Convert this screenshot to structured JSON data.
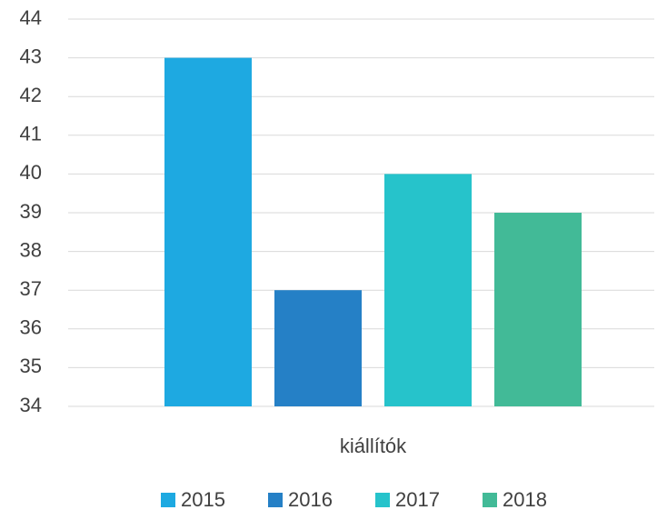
{
  "chart_data": {
    "type": "bar",
    "categories": [
      "kiállítók"
    ],
    "series": [
      {
        "name": "2015",
        "color": "#1ea9e1",
        "values": [
          43
        ]
      },
      {
        "name": "2016",
        "color": "#2580c6",
        "values": [
          37
        ]
      },
      {
        "name": "2017",
        "color": "#26c3cb",
        "values": [
          40
        ]
      },
      {
        "name": "2018",
        "color": "#42ba97",
        "values": [
          39
        ]
      }
    ],
    "ylim": [
      34,
      44
    ],
    "yticks": [
      34,
      35,
      36,
      37,
      38,
      39,
      40,
      41,
      42,
      43,
      44
    ],
    "grid": true,
    "legend": "bottom"
  }
}
